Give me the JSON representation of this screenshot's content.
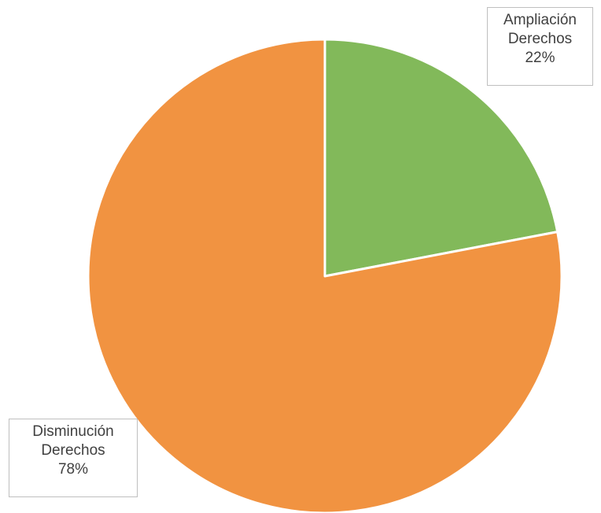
{
  "chart_data": {
    "type": "pie",
    "title": "",
    "slices": [
      {
        "label_line1": "Ampliación",
        "label_line2": "Derechos",
        "percent_text": "22%",
        "value": 22,
        "color": "#82b95a"
      },
      {
        "label_line1": "Disminución",
        "label_line2": "Derechos",
        "percent_text": "78%",
        "value": 78,
        "color": "#f19341"
      }
    ],
    "start_angle": "12 o'clock",
    "direction": "clockwise",
    "slice_border_color": "#ffffff",
    "legend": "none"
  }
}
